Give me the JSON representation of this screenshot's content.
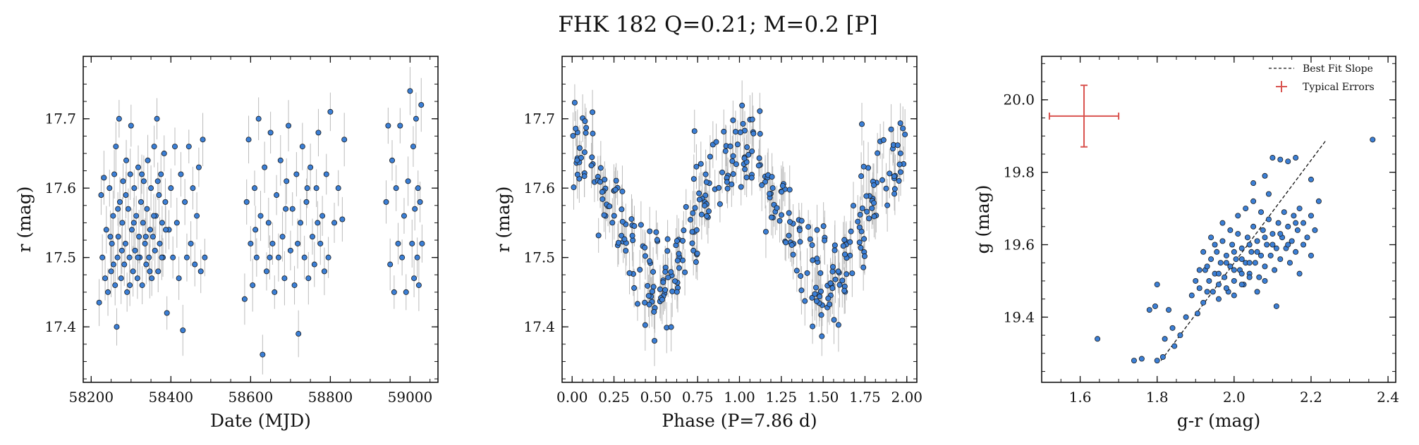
{
  "figure": {
    "title": "FHK 182  Q=0.21; M=0.2 [P]"
  },
  "chart_data": [
    {
      "type": "scatter",
      "xlabel": "Date (MJD)",
      "ylabel": "r (mag)",
      "xlim": [
        58180,
        59070
      ],
      "ylim": [
        17.79,
        17.32
      ],
      "y_inverted": true,
      "xticks": [
        58200,
        58400,
        58600,
        58800,
        59000
      ],
      "xtick_labels": [
        "58200",
        "58400",
        "58600",
        "58800",
        "59000"
      ],
      "yticks": [
        17.4,
        17.5,
        17.6,
        17.7
      ],
      "ytick_labels": [
        "17.4",
        "17.5",
        "17.6",
        "17.7"
      ],
      "marker_color": "#3b7fd6",
      "errorbar_color": "#bbbbbb",
      "typical_y_error": 0.03,
      "points": [
        [
          58220,
          17.435
        ],
        [
          58225,
          17.59
        ],
        [
          58228,
          17.5
        ],
        [
          58232,
          17.615
        ],
        [
          58238,
          17.54
        ],
        [
          58242,
          17.45
        ],
        [
          58246,
          17.6
        ],
        [
          58250,
          17.48
        ],
        [
          58252,
          17.52
        ],
        [
          58255,
          17.56
        ],
        [
          58258,
          17.62
        ],
        [
          58260,
          17.46
        ],
        [
          58262,
          17.66
        ],
        [
          58264,
          17.4
        ],
        [
          58266,
          17.5
        ],
        [
          58268,
          17.53
        ],
        [
          58270,
          17.7
        ],
        [
          58272,
          17.58
        ],
        [
          58275,
          17.47
        ],
        [
          58278,
          17.55
        ],
        [
          58280,
          17.61
        ],
        [
          58283,
          17.49
        ],
        [
          58286,
          17.52
        ],
        [
          58288,
          17.64
        ],
        [
          58290,
          17.45
        ],
        [
          58293,
          17.57
        ],
        [
          58296,
          17.5
        ],
        [
          58298,
          17.62
        ],
        [
          58300,
          17.69
        ],
        [
          58302,
          17.54
        ],
        [
          58305,
          17.48
        ],
        [
          58308,
          17.6
        ],
        [
          58310,
          17.51
        ],
        [
          58313,
          17.56
        ],
        [
          58316,
          17.47
        ],
        [
          58318,
          17.63
        ],
        [
          58320,
          17.53
        ],
        [
          58322,
          17.5
        ],
        [
          58325,
          17.58
        ],
        [
          58328,
          17.46
        ],
        [
          58330,
          17.55
        ],
        [
          58332,
          17.61
        ],
        [
          58335,
          17.52
        ],
        [
          58338,
          17.49
        ],
        [
          58340,
          17.57
        ],
        [
          58342,
          17.64
        ],
        [
          58345,
          17.5
        ],
        [
          58348,
          17.54
        ],
        [
          58350,
          17.6
        ],
        [
          58352,
          17.47
        ],
        [
          58355,
          17.53
        ],
        [
          58358,
          17.66
        ],
        [
          58360,
          17.51
        ],
        [
          58362,
          17.56
        ],
        [
          58365,
          17.7
        ],
        [
          58368,
          17.48
        ],
        [
          58370,
          17.59
        ],
        [
          58372,
          17.52
        ],
        [
          58375,
          17.62
        ],
        [
          58378,
          17.55
        ],
        [
          58380,
          17.5
        ],
        [
          58383,
          17.65
        ],
        [
          58386,
          17.58
        ],
        [
          58390,
          17.42
        ],
        [
          58395,
          17.54
        ],
        [
          58400,
          17.6
        ],
        [
          58405,
          17.5
        ],
        [
          58410,
          17.66
        ],
        [
          58415,
          17.55
        ],
        [
          58420,
          17.47
        ],
        [
          58425,
          17.62
        ],
        [
          58430,
          17.395
        ],
        [
          58435,
          17.58
        ],
        [
          58440,
          17.5
        ],
        [
          58445,
          17.66
        ],
        [
          58450,
          17.52
        ],
        [
          58455,
          17.6
        ],
        [
          58460,
          17.49
        ],
        [
          58465,
          17.56
        ],
        [
          58470,
          17.63
        ],
        [
          58475,
          17.48
        ],
        [
          58480,
          17.67
        ],
        [
          58485,
          17.5
        ],
        [
          58235,
          17.47
        ],
        [
          58248,
          17.53
        ],
        [
          58256,
          17.49
        ],
        [
          58267,
          17.57
        ],
        [
          58277,
          17.51
        ],
        [
          58287,
          17.59
        ],
        [
          58297,
          17.46
        ],
        [
          58307,
          17.55
        ],
        [
          58317,
          17.5
        ],
        [
          58327,
          17.62
        ],
        [
          58337,
          17.53
        ],
        [
          58347,
          17.48
        ],
        [
          58357,
          17.56
        ],
        [
          58367,
          17.61
        ],
        [
          58377,
          17.5
        ],
        [
          58387,
          17.54
        ],
        [
          58585,
          17.44
        ],
        [
          58590,
          17.58
        ],
        [
          58595,
          17.67
        ],
        [
          58600,
          17.52
        ],
        [
          58605,
          17.46
        ],
        [
          58610,
          17.6
        ],
        [
          58615,
          17.5
        ],
        [
          58620,
          17.7
        ],
        [
          58625,
          17.56
        ],
        [
          58630,
          17.36
        ],
        [
          58635,
          17.63
        ],
        [
          58640,
          17.48
        ],
        [
          58645,
          17.55
        ],
        [
          58650,
          17.68
        ],
        [
          58655,
          17.52
        ],
        [
          58660,
          17.45
        ],
        [
          58665,
          17.59
        ],
        [
          58670,
          17.5
        ],
        [
          58675,
          17.64
        ],
        [
          58680,
          17.53
        ],
        [
          58685,
          17.47
        ],
        [
          58690,
          17.61
        ],
        [
          58695,
          17.69
        ],
        [
          58700,
          17.51
        ],
        [
          58705,
          17.57
        ],
        [
          58710,
          17.46
        ],
        [
          58715,
          17.62
        ],
        [
          58720,
          17.39
        ],
        [
          58725,
          17.55
        ],
        [
          58730,
          17.66
        ],
        [
          58735,
          17.5
        ],
        [
          58740,
          17.58
        ],
        [
          58745,
          17.47
        ],
        [
          58750,
          17.63
        ],
        [
          58755,
          17.53
        ],
        [
          58760,
          17.49
        ],
        [
          58765,
          17.6
        ],
        [
          58770,
          17.68
        ],
        [
          58775,
          17.52
        ],
        [
          58780,
          17.56
        ],
        [
          58785,
          17.48
        ],
        [
          58790,
          17.62
        ],
        [
          58795,
          17.5
        ],
        [
          58800,
          17.71
        ],
        [
          58810,
          17.55
        ],
        [
          58820,
          17.6
        ],
        [
          58830,
          17.555
        ],
        [
          58835,
          17.67
        ],
        [
          58612,
          17.54
        ],
        [
          58648,
          17.5
        ],
        [
          58688,
          17.57
        ],
        [
          58718,
          17.52
        ],
        [
          58742,
          17.6
        ],
        [
          58768,
          17.55
        ],
        [
          58940,
          17.58
        ],
        [
          58945,
          17.69
        ],
        [
          58950,
          17.49
        ],
        [
          58955,
          17.64
        ],
        [
          58960,
          17.45
        ],
        [
          58965,
          17.6
        ],
        [
          58970,
          17.52
        ],
        [
          58975,
          17.69
        ],
        [
          58980,
          17.5
        ],
        [
          58985,
          17.56
        ],
        [
          58990,
          17.45
        ],
        [
          58995,
          17.61
        ],
        [
          59000,
          17.74
        ],
        [
          59005,
          17.52
        ],
        [
          59008,
          17.66
        ],
        [
          59010,
          17.47
        ],
        [
          59012,
          17.57
        ],
        [
          59015,
          17.7
        ],
        [
          59018,
          17.5
        ],
        [
          59020,
          17.6
        ],
        [
          59022,
          17.46
        ],
        [
          59025,
          17.58
        ],
        [
          59028,
          17.72
        ],
        [
          59030,
          17.52
        ]
      ]
    },
    {
      "type": "scatter",
      "xlabel": "Phase (P=7.86 d)",
      "ylabel": "r (mag)",
      "xlim": [
        -0.06,
        2.06
      ],
      "ylim": [
        17.79,
        17.32
      ],
      "y_inverted": true,
      "xticks": [
        0.0,
        0.25,
        0.5,
        0.75,
        1.0,
        1.25,
        1.5,
        1.75,
        2.0
      ],
      "xtick_labels": [
        "0.00",
        "0.25",
        "0.50",
        "0.75",
        "1.00",
        "1.25",
        "1.50",
        "1.75",
        "2.00"
      ],
      "yticks": [
        17.4,
        17.5,
        17.6,
        17.7
      ],
      "ytick_labels": [
        "17.4",
        "17.5",
        "17.6",
        "17.7"
      ],
      "marker_color": "#3b7fd6",
      "errorbar_color": "#bbbbbb",
      "typical_y_error": 0.03,
      "phase_curve": {
        "mean_mag": 17.56,
        "amplitude_mag": 0.095,
        "brightest_phase": 0.5,
        "scatter_mag": 0.035,
        "points_per_cycle": 180
      }
    },
    {
      "type": "scatter",
      "xlabel": "g-r (mag)",
      "ylabel": "g (mag)",
      "xlim": [
        1.5,
        2.42
      ],
      "ylim": [
        20.12,
        19.22
      ],
      "y_inverted": true,
      "xticks": [
        1.6,
        1.8,
        2.0,
        2.2,
        2.4
      ],
      "xtick_labels": [
        "1.6",
        "1.8",
        "2.0",
        "2.2",
        "2.4"
      ],
      "yticks": [
        19.4,
        19.6,
        19.8,
        20.0
      ],
      "ytick_labels": [
        "19.4",
        "19.6",
        "19.8",
        "20.0"
      ],
      "marker_color": "#3b7fd6",
      "best_fit_line": {
        "x": [
          1.81,
          2.24
        ],
        "y": [
          19.28,
          19.89
        ]
      },
      "typical_error": {
        "x": 1.61,
        "y": 19.955,
        "xerr": 0.09,
        "yerr": 0.085,
        "color": "#d9534f"
      },
      "legend": {
        "placement": "top-right",
        "entries": [
          {
            "label": "Best Fit Slope",
            "style": "dashed-line"
          },
          {
            "label": "Typical Errors",
            "style": "errorbar"
          }
        ]
      },
      "points": [
        [
          1.645,
          19.34
        ],
        [
          1.74,
          19.28
        ],
        [
          1.76,
          19.285
        ],
        [
          1.8,
          19.28
        ],
        [
          1.815,
          19.29
        ],
        [
          1.78,
          19.42
        ],
        [
          1.795,
          19.43
        ],
        [
          1.8,
          19.49
        ],
        [
          1.82,
          19.34
        ],
        [
          1.83,
          19.42
        ],
        [
          1.84,
          19.37
        ],
        [
          1.845,
          19.32
        ],
        [
          1.86,
          19.35
        ],
        [
          1.875,
          19.4
        ],
        [
          1.89,
          19.46
        ],
        [
          1.905,
          19.41
        ],
        [
          1.91,
          19.48
        ],
        [
          1.92,
          19.44
        ],
        [
          1.925,
          19.53
        ],
        [
          1.935,
          19.5
        ],
        [
          1.94,
          19.56
        ],
        [
          1.945,
          19.47
        ],
        [
          1.95,
          19.52
        ],
        [
          1.955,
          19.58
        ],
        [
          1.96,
          19.49
        ],
        [
          1.965,
          19.55
        ],
        [
          1.97,
          19.61
        ],
        [
          1.975,
          19.51
        ],
        [
          1.98,
          19.57
        ],
        [
          1.985,
          19.47
        ],
        [
          1.99,
          19.54
        ],
        [
          1.995,
          19.6
        ],
        [
          2.0,
          19.5
        ],
        [
          2.005,
          19.56
        ],
        [
          2.01,
          19.63
        ],
        [
          2.015,
          19.53
        ],
        [
          2.02,
          19.59
        ],
        [
          2.025,
          19.49
        ],
        [
          2.03,
          19.55
        ],
        [
          2.035,
          19.62
        ],
        [
          2.04,
          19.52
        ],
        [
          2.045,
          19.58
        ],
        [
          2.05,
          19.65
        ],
        [
          2.055,
          19.55
        ],
        [
          2.06,
          19.61
        ],
        [
          2.065,
          19.51
        ],
        [
          2.07,
          19.57
        ],
        [
          2.075,
          19.64
        ],
        [
          2.08,
          19.54
        ],
        [
          2.085,
          19.6
        ],
        [
          2.09,
          19.67
        ],
        [
          2.095,
          19.57
        ],
        [
          2.1,
          19.63
        ],
        [
          2.105,
          19.53
        ],
        [
          2.11,
          19.59
        ],
        [
          2.115,
          19.66
        ],
        [
          2.12,
          19.56
        ],
        [
          2.125,
          19.62
        ],
        [
          2.13,
          19.69
        ],
        [
          2.135,
          19.59
        ],
        [
          2.14,
          19.65
        ],
        [
          2.145,
          19.55
        ],
        [
          2.15,
          19.61
        ],
        [
          2.155,
          19.68
        ],
        [
          2.16,
          19.58
        ],
        [
          2.165,
          19.64
        ],
        [
          2.17,
          19.7
        ],
        [
          2.18,
          19.66
        ],
        [
          2.19,
          19.62
        ],
        [
          2.2,
          19.68
        ],
        [
          2.21,
          19.64
        ],
        [
          2.22,
          19.72
        ],
        [
          1.93,
          19.54
        ],
        [
          1.95,
          19.6
        ],
        [
          1.97,
          19.66
        ],
        [
          1.99,
          19.64
        ],
        [
          2.01,
          19.68
        ],
        [
          2.03,
          19.7
        ],
        [
          2.05,
          19.72
        ],
        [
          2.07,
          19.69
        ],
        [
          2.09,
          19.74
        ],
        [
          1.96,
          19.45
        ],
        [
          1.98,
          19.48
        ],
        [
          2.0,
          19.46
        ],
        [
          2.02,
          19.49
        ],
        [
          2.04,
          19.51
        ],
        [
          2.06,
          19.47
        ],
        [
          2.08,
          19.5
        ],
        [
          1.92,
          19.58
        ],
        [
          1.94,
          19.62
        ],
        [
          2.05,
          19.77
        ],
        [
          2.08,
          19.79
        ],
        [
          2.1,
          19.84
        ],
        [
          2.12,
          19.835
        ],
        [
          2.14,
          19.83
        ],
        [
          2.16,
          19.84
        ],
        [
          2.2,
          19.78
        ],
        [
          2.11,
          19.43
        ],
        [
          2.17,
          19.52
        ],
        [
          2.2,
          19.57
        ],
        [
          2.36,
          19.89
        ],
        [
          1.9,
          19.5
        ],
        [
          1.91,
          19.53
        ],
        [
          1.93,
          19.47
        ],
        [
          2.0,
          19.53
        ],
        [
          2.02,
          19.56
        ],
        [
          2.04,
          19.6
        ],
        [
          2.06,
          19.58
        ],
        [
          2.08,
          19.62
        ],
        [
          2.1,
          19.6
        ],
        [
          2.12,
          19.63
        ],
        [
          2.14,
          19.6
        ],
        [
          2.16,
          19.66
        ],
        [
          2.18,
          19.6
        ],
        [
          1.96,
          19.52
        ],
        [
          1.98,
          19.55
        ],
        [
          2.0,
          19.58
        ],
        [
          2.02,
          19.52
        ],
        [
          2.04,
          19.55
        ]
      ]
    }
  ]
}
